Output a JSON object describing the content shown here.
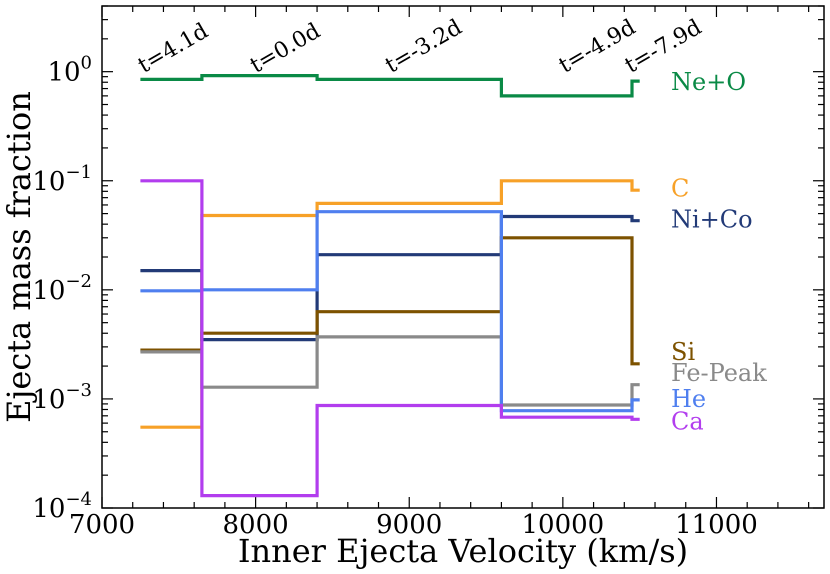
{
  "chart_data": {
    "type": "line",
    "step": "post",
    "xlabel": "Inner Ejecta Velocity (km/s)",
    "ylabel": "Ejecta mass fraction",
    "xlim": [
      7000,
      11700
    ],
    "ylim": [
      0.0001,
      4
    ],
    "yscale": "log",
    "x_ticks": [
      7000,
      8000,
      9000,
      10000,
      11000
    ],
    "x_tick_labels": [
      "7000",
      "8000",
      "9000",
      "10000",
      "11000"
    ],
    "y_ticks": [
      0.0001,
      0.001,
      0.01,
      0.1,
      1
    ],
    "y_tick_labels": [
      {
        "base": "10",
        "exp": "−4"
      },
      {
        "base": "10",
        "exp": "−3"
      },
      {
        "base": "10",
        "exp": "−2"
      },
      {
        "base": "10",
        "exp": "−1"
      },
      {
        "base": "10",
        "exp": "0"
      }
    ],
    "epochs": [
      {
        "label": "t=4.1d",
        "x": 7270
      },
      {
        "label": "t=0.0d",
        "x": 8000
      },
      {
        "label": "t=-3.2d",
        "x": 8880
      },
      {
        "label": "t=-4.9d",
        "x": 10010
      },
      {
        "label": "t=-7.9d",
        "x": 10440
      }
    ],
    "x_edges": [
      7250,
      7650,
      8400,
      9600,
      10450,
      10500
    ],
    "series": [
      {
        "name": "Ne+O",
        "color": "#0a8a46",
        "values": [
          0.85,
          0.92,
          0.85,
          0.6,
          0.82
        ],
        "label_value": 0.8
      },
      {
        "name": "C",
        "color": "#f7a128",
        "values": [
          0.00055,
          0.048,
          0.062,
          0.1,
          0.082
        ],
        "label_value": 0.085
      },
      {
        "name": "Ni+Co",
        "color": "#223a77",
        "values": [
          0.015,
          0.0035,
          0.021,
          0.047,
          0.043
        ],
        "label_value": 0.044
      },
      {
        "name": "Si",
        "color": "#7d5200",
        "values": [
          0.0028,
          0.004,
          0.0063,
          0.03,
          0.0021
        ],
        "label_value": 0.0027
      },
      {
        "name": "Fe-Peak",
        "color": "#8a8a8a",
        "values": [
          0.0027,
          0.00128,
          0.0037,
          0.00088,
          0.00135
        ],
        "label_value": 0.00172
      },
      {
        "name": "He",
        "color": "#4f7fef",
        "values": [
          0.0098,
          0.01,
          0.052,
          0.00078,
          0.00098
        ],
        "label_value": 0.001
      },
      {
        "name": "Ca",
        "color": "#b23dee",
        "values": [
          0.1,
          0.00013,
          0.00087,
          0.00068,
          0.00065
        ],
        "label_value": 0.00062
      }
    ]
  }
}
